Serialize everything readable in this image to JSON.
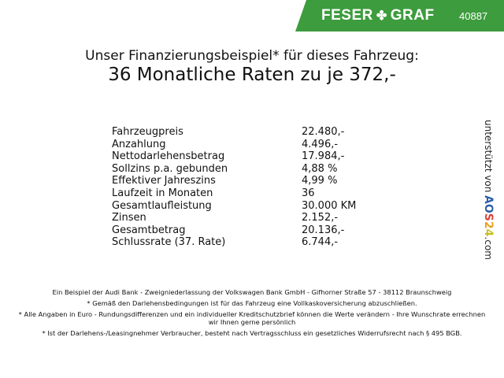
{
  "header": {
    "brand": "FESER",
    "brand2": "GRAF",
    "dealer_id": "40887",
    "brand_color": "#3d9c3d"
  },
  "title": {
    "line1": "Unser Finanzierungsbeispiel* für dieses Fahrzeug:",
    "line2": "36 Monatliche Raten zu je 372,-"
  },
  "rows": [
    {
      "label": "Fahrzeugpreis",
      "value": "22.480,-"
    },
    {
      "label": "Anzahlung",
      "value": "4.496,-"
    },
    {
      "label": "Nettodarlehensbetrag",
      "value": "17.984,-"
    },
    {
      "label": "Sollzins p.a. gebunden",
      "value": "4,88 %"
    },
    {
      "label": "Effektiver Jahreszins",
      "value": "4,99 %"
    },
    {
      "label": "Laufzeit in Monaten",
      "value": "36"
    },
    {
      "label": "Gesamtlaufleistung",
      "value": "30.000 KM"
    },
    {
      "label": "Zinsen",
      "value": "2.152,-"
    },
    {
      "label": "Gesamtbetrag",
      "value": "20.136,-"
    },
    {
      "label": "Schlussrate (37. Rate)",
      "value": "6.744,-"
    }
  ],
  "side": {
    "text": "unterstützt von",
    "logo": [
      "A",
      "O",
      "S",
      "2",
      "4"
    ],
    "suffix": ".com"
  },
  "footer": [
    "Ein Beispiel der Audi Bank - Zweigniederlassung der Volkswagen Bank GmbH - Gifhorner Straße 57 - 38112 Braunschweig",
    "* Gemäß den Darlehensbedingungen ist für das Fahrzeug eine Vollkaskoversicherung abzuschließen.",
    "* Alle Angaben in Euro - Rundungsdifferenzen und ein individueller Kreditschutzbrief können die Werte verändern - Ihre Wunschrate errechnen wir Ihnen gerne persönlich",
    "* Ist der Darlehens-/Leasingnehmer Verbraucher, besteht nach Vertragsschluss ein gesetzliches Widerrufsrecht nach § 495 BGB."
  ]
}
